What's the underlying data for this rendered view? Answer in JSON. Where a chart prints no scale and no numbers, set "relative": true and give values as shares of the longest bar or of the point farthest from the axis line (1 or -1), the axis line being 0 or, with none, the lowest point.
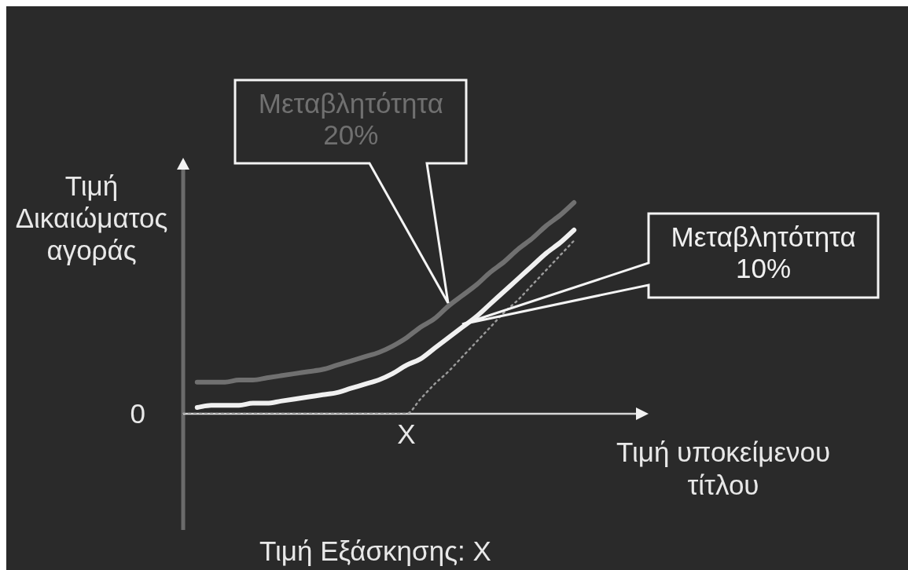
{
  "chart_data": {
    "type": "line",
    "relative": true,
    "legend": false,
    "marker": "none",
    "categories": [
      null,
      null,
      null,
      null,
      null,
      null,
      null,
      null,
      null,
      null,
      null,
      null,
      null,
      null,
      null,
      null,
      null,
      null,
      null,
      null,
      null,
      null,
      null,
      null,
      null,
      null,
      null,
      null,
      null,
      null,
      null,
      null,
      null,
      null
    ],
    "xlabel": "Τιμή υποκείμενου τίτλου",
    "ylabel": "Τιμή Δικαιώματος αγοράς",
    "annotations": [
      "0",
      "X",
      "Τιμή Εξάσκησης: X"
    ],
    "series": [
      {
        "name": "Μεταβλητότητα 20%",
        "color": "#707070",
        "values": [
          null,
          0.15,
          0.15,
          0.15,
          0.16,
          0.16,
          0.17,
          0.18,
          0.19,
          0.2,
          0.21,
          0.23,
          0.25,
          0.27,
          0.29,
          0.32,
          0.36,
          0.41,
          0.45,
          0.51,
          0.56,
          0.61,
          0.67,
          0.72,
          0.78,
          0.83,
          0.89,
          0.94,
          1,
          null,
          null,
          null,
          null,
          null
        ]
      },
      {
        "name": "Μεταβλητότητα 10%",
        "color": "#f0f0f0",
        "values": [
          null,
          0.03,
          0.04,
          0.04,
          0.04,
          0.05,
          0.05,
          0.06,
          0.07,
          0.08,
          0.09,
          0.1,
          0.12,
          0.14,
          0.16,
          0.19,
          0.23,
          0.26,
          0.31,
          0.36,
          0.41,
          0.46,
          0.52,
          0.58,
          0.64,
          0.7,
          0.76,
          0.81,
          0.87,
          null,
          null,
          null,
          null,
          null
        ]
      },
      {
        "color": "#9a9a9a",
        "line_style": "dotted",
        "values": [
          0,
          0,
          0,
          0,
          0,
          0,
          0,
          0,
          0,
          0,
          0,
          0,
          0,
          0,
          0,
          0,
          0,
          0.07,
          0.14,
          0.2,
          0.27,
          0.34,
          0.41,
          0.48,
          0.54,
          0.61,
          0.68,
          0.75,
          0.82,
          null,
          null,
          null,
          null,
          null
        ]
      }
    ]
  }
}
